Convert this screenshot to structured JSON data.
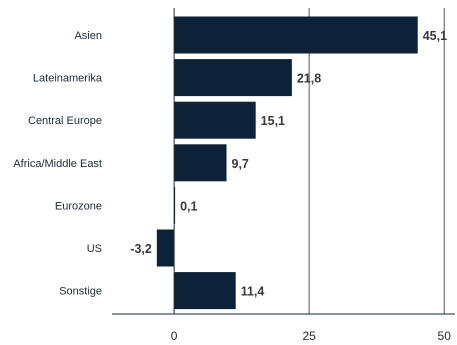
{
  "chart_data": {
    "type": "bar",
    "orientation": "horizontal",
    "categories": [
      "Asien",
      "Lateinamerika",
      "Central Europe",
      "Africa/Middle East",
      "Eurozone",
      "US",
      "Sonstige"
    ],
    "values": [
      45.1,
      21.8,
      15.1,
      9.7,
      0.1,
      -3.2,
      11.4
    ],
    "value_labels": [
      "45,1",
      "21,8",
      "15,1",
      "9,7",
      "0,1",
      "-3,2",
      "11,4"
    ],
    "xticks": [
      0,
      25,
      50
    ],
    "xtick_labels": [
      "0",
      "25",
      "50"
    ],
    "xlim": [
      -11.5,
      52
    ],
    "grid": true,
    "title": "",
    "xlabel": "",
    "ylabel": "",
    "bar_color": "#0b2239"
  }
}
